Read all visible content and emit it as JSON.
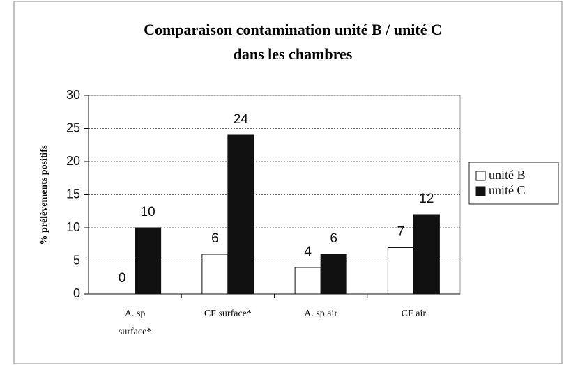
{
  "chart_data": {
    "type": "bar",
    "title": [
      "Comparaison contamination unité B / unité C",
      "dans les chambres"
    ],
    "y_label": "% prélèvements positifs",
    "categories": [
      "A. sp surface*",
      "CF surface*",
      "A. sp air",
      "CF air"
    ],
    "series": [
      {
        "name": "unité B",
        "color": "#ffffff",
        "values": [
          0,
          6,
          4,
          7
        ]
      },
      {
        "name": "unité C",
        "color": "#111111",
        "values": [
          10,
          24,
          6,
          12
        ]
      }
    ],
    "ylim": [
      0,
      30
    ],
    "yticks": [
      0,
      5,
      10,
      15,
      20,
      25,
      30
    ],
    "grid": true,
    "legend": "right"
  }
}
